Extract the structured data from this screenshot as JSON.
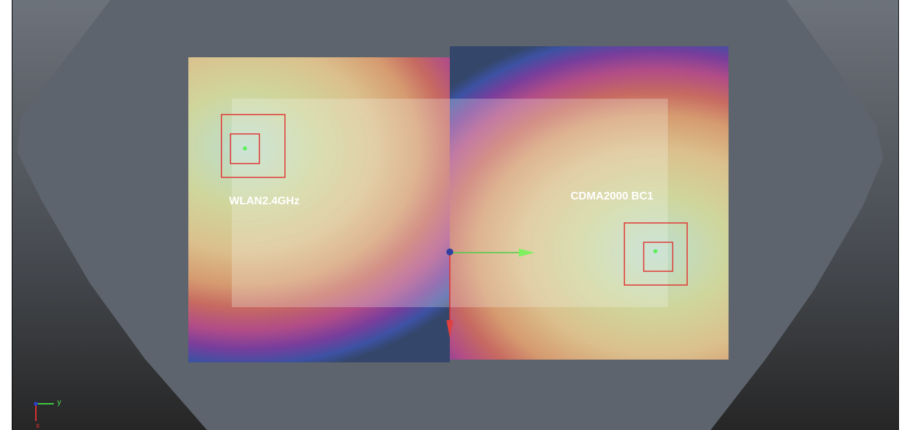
{
  "labels": {
    "left_region": "WLAN2.4GHz",
    "right_region": "CDMA2000 BC1"
  },
  "axis_triad": {
    "y": "y",
    "x": "x"
  }
}
